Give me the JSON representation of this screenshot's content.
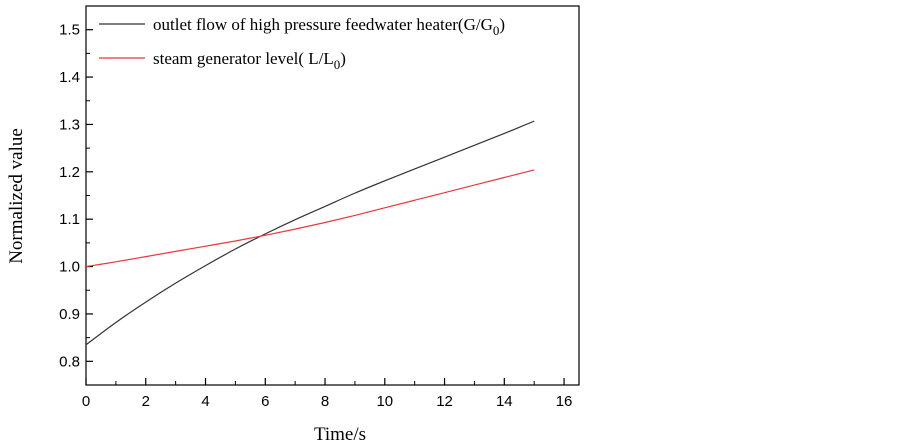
{
  "chart_data": {
    "type": "line",
    "xlabel": "Time/s",
    "ylabel": "Normalized value",
    "xlim": [
      0,
      16.5
    ],
    "ylim": [
      0.75,
      1.55
    ],
    "xticks": [
      "0",
      "2",
      "4",
      "6",
      "8",
      "10",
      "12",
      "14",
      "16"
    ],
    "yticks": [
      "0.8",
      "0.9",
      "1.0",
      "1.1",
      "1.2",
      "1.3",
      "1.4",
      "1.5"
    ],
    "grid": false,
    "legend_position": "top-left",
    "series": [
      {
        "name": "outlet flow of high pressure feedwater heater(G/G",
        "name_sub": "0",
        "name_suffix": ")",
        "color": "#333333",
        "x": [
          0,
          1,
          2,
          3,
          4,
          5,
          6,
          7,
          8,
          9,
          10,
          11,
          12,
          13,
          14,
          15
        ],
        "y": [
          0.835,
          0.882,
          0.925,
          0.965,
          1.002,
          1.037,
          1.069,
          1.099,
          1.127,
          1.155,
          1.181,
          1.206,
          1.231,
          1.256,
          1.281,
          1.307
        ]
      },
      {
        "name": "steam generator level(  L/L",
        "name_sub": "0",
        "name_suffix": ")",
        "color": "#e8383d",
        "x": [
          0,
          1,
          2,
          3,
          4,
          5,
          6,
          7,
          8,
          9,
          10,
          11,
          12,
          13,
          14,
          15
        ],
        "y": [
          1.0,
          1.01,
          1.021,
          1.032,
          1.043,
          1.054,
          1.066,
          1.079,
          1.093,
          1.108,
          1.124,
          1.14,
          1.156,
          1.172,
          1.188,
          1.204
        ]
      }
    ]
  }
}
